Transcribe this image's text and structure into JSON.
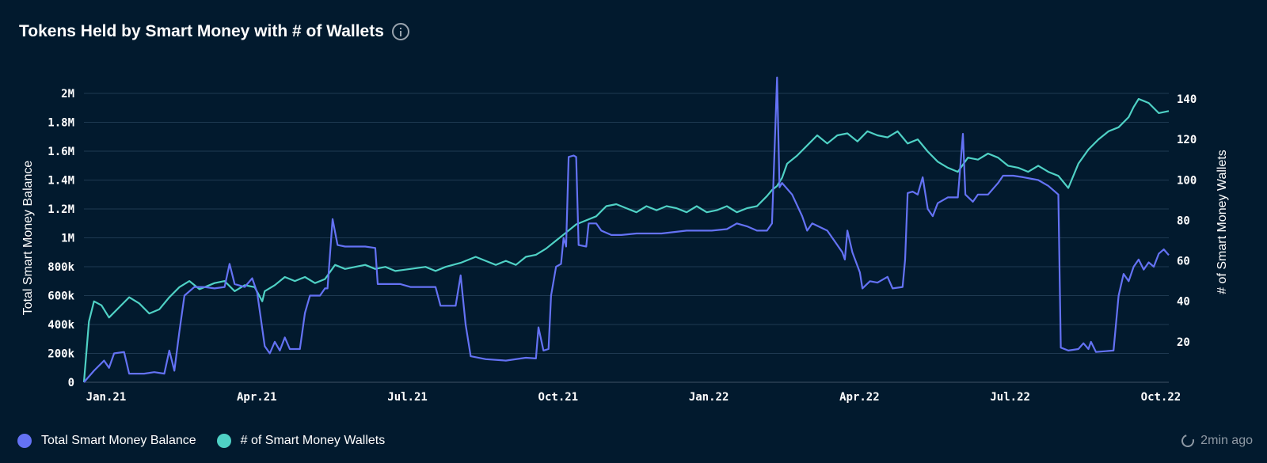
{
  "header": {
    "title": "Tokens Held by Smart Money with # of Wallets"
  },
  "legend": [
    {
      "label": "Total Smart Money Balance",
      "color": "#6472f4"
    },
    {
      "label": "# of Smart Money Wallets",
      "color": "#4fd1c5"
    }
  ],
  "footer": {
    "timestamp": "2min ago"
  },
  "chart_data": {
    "type": "line",
    "title": "Tokens Held by Smart Money with # of Wallets",
    "x_ticks": [
      "Jan.21",
      "Apr.21",
      "Jul.21",
      "Oct.21",
      "Jan.22",
      "Apr.22",
      "Jul.22",
      "Oct.22"
    ],
    "x_range": [
      0,
      21.6
    ],
    "y_left": {
      "label": "Total Smart Money Balance",
      "range": [
        0,
        2000000
      ],
      "ticks": [
        0,
        200000,
        400000,
        600000,
        800000,
        1000000,
        1200000,
        1400000,
        1600000,
        1800000,
        2000000
      ],
      "tick_labels": [
        "0",
        "200k",
        "400k",
        "600k",
        "800k",
        "1M",
        "1.2M",
        "1.4M",
        "1.6M",
        "1.8M",
        "2M"
      ]
    },
    "y_right": {
      "label": "# of Smart Money Wallets",
      "range": [
        0,
        140
      ],
      "ticks": [
        20,
        40,
        60,
        80,
        100,
        120,
        140
      ],
      "tick_labels": [
        "20",
        "40",
        "60",
        "80",
        "100",
        "120",
        "140"
      ]
    },
    "grid": true,
    "legend_position": "bottom-left",
    "series": [
      {
        "name": "Total Smart Money Balance",
        "axis": "left",
        "color": "#6472f4",
        "points": [
          [
            0.0,
            0
          ],
          [
            0.2,
            80000
          ],
          [
            0.4,
            150000
          ],
          [
            0.5,
            100000
          ],
          [
            0.6,
            200000
          ],
          [
            0.8,
            210000
          ],
          [
            0.9,
            60000
          ],
          [
            1.2,
            60000
          ],
          [
            1.4,
            70000
          ],
          [
            1.6,
            60000
          ],
          [
            1.7,
            220000
          ],
          [
            1.8,
            80000
          ],
          [
            1.9,
            350000
          ],
          [
            2.0,
            600000
          ],
          [
            2.2,
            660000
          ],
          [
            2.4,
            660000
          ],
          [
            2.6,
            650000
          ],
          [
            2.8,
            660000
          ],
          [
            2.9,
            820000
          ],
          [
            3.0,
            680000
          ],
          [
            3.2,
            660000
          ],
          [
            3.35,
            720000
          ],
          [
            3.45,
            620000
          ],
          [
            3.6,
            250000
          ],
          [
            3.7,
            200000
          ],
          [
            3.8,
            280000
          ],
          [
            3.9,
            220000
          ],
          [
            4.0,
            310000
          ],
          [
            4.1,
            230000
          ],
          [
            4.3,
            230000
          ],
          [
            4.4,
            480000
          ],
          [
            4.5,
            600000
          ],
          [
            4.7,
            600000
          ],
          [
            4.8,
            650000
          ],
          [
            4.85,
            650000
          ],
          [
            4.95,
            1130000
          ],
          [
            5.05,
            950000
          ],
          [
            5.2,
            940000
          ],
          [
            5.6,
            940000
          ],
          [
            5.8,
            930000
          ],
          [
            5.85,
            680000
          ],
          [
            6.3,
            680000
          ],
          [
            6.5,
            660000
          ],
          [
            7.0,
            660000
          ],
          [
            7.1,
            530000
          ],
          [
            7.4,
            530000
          ],
          [
            7.5,
            740000
          ],
          [
            7.6,
            400000
          ],
          [
            7.7,
            180000
          ],
          [
            8.0,
            160000
          ],
          [
            8.4,
            150000
          ],
          [
            8.8,
            170000
          ],
          [
            9.0,
            165000
          ],
          [
            9.05,
            380000
          ],
          [
            9.15,
            220000
          ],
          [
            9.25,
            230000
          ],
          [
            9.3,
            600000
          ],
          [
            9.4,
            800000
          ],
          [
            9.5,
            820000
          ],
          [
            9.55,
            1000000
          ],
          [
            9.6,
            940000
          ],
          [
            9.65,
            1560000
          ],
          [
            9.75,
            1570000
          ],
          [
            9.8,
            1560000
          ],
          [
            9.85,
            950000
          ],
          [
            10.0,
            940000
          ],
          [
            10.05,
            1100000
          ],
          [
            10.2,
            1100000
          ],
          [
            10.3,
            1050000
          ],
          [
            10.5,
            1020000
          ],
          [
            10.7,
            1020000
          ],
          [
            11.0,
            1030000
          ],
          [
            11.5,
            1030000
          ],
          [
            12.0,
            1050000
          ],
          [
            12.5,
            1050000
          ],
          [
            12.8,
            1060000
          ],
          [
            13.0,
            1100000
          ],
          [
            13.2,
            1080000
          ],
          [
            13.4,
            1050000
          ],
          [
            13.6,
            1050000
          ],
          [
            13.7,
            1100000
          ],
          [
            13.8,
            2110000
          ],
          [
            13.85,
            1350000
          ],
          [
            13.9,
            1380000
          ],
          [
            14.1,
            1300000
          ],
          [
            14.3,
            1150000
          ],
          [
            14.4,
            1050000
          ],
          [
            14.5,
            1100000
          ],
          [
            14.8,
            1050000
          ],
          [
            15.0,
            950000
          ],
          [
            15.1,
            900000
          ],
          [
            15.15,
            850000
          ],
          [
            15.2,
            1050000
          ],
          [
            15.3,
            900000
          ],
          [
            15.45,
            760000
          ],
          [
            15.5,
            650000
          ],
          [
            15.65,
            700000
          ],
          [
            15.8,
            690000
          ],
          [
            16.0,
            730000
          ],
          [
            16.1,
            650000
          ],
          [
            16.3,
            660000
          ],
          [
            16.35,
            850000
          ],
          [
            16.4,
            1310000
          ],
          [
            16.5,
            1320000
          ],
          [
            16.6,
            1300000
          ],
          [
            16.7,
            1420000
          ],
          [
            16.8,
            1200000
          ],
          [
            16.9,
            1150000
          ],
          [
            17.0,
            1240000
          ],
          [
            17.2,
            1280000
          ],
          [
            17.4,
            1280000
          ],
          [
            17.5,
            1720000
          ],
          [
            17.55,
            1300000
          ],
          [
            17.7,
            1250000
          ],
          [
            17.8,
            1300000
          ],
          [
            18.0,
            1300000
          ],
          [
            18.2,
            1380000
          ],
          [
            18.3,
            1430000
          ],
          [
            18.5,
            1430000
          ],
          [
            18.7,
            1420000
          ],
          [
            19.0,
            1400000
          ],
          [
            19.2,
            1360000
          ],
          [
            19.4,
            1300000
          ],
          [
            19.45,
            240000
          ],
          [
            19.6,
            220000
          ],
          [
            19.8,
            230000
          ],
          [
            19.9,
            270000
          ],
          [
            20.0,
            230000
          ],
          [
            20.05,
            280000
          ],
          [
            20.15,
            210000
          ],
          [
            20.5,
            220000
          ],
          [
            20.6,
            600000
          ],
          [
            20.7,
            750000
          ],
          [
            20.8,
            700000
          ],
          [
            20.9,
            800000
          ],
          [
            21.0,
            850000
          ],
          [
            21.1,
            780000
          ],
          [
            21.2,
            830000
          ],
          [
            21.3,
            800000
          ],
          [
            21.4,
            890000
          ],
          [
            21.5,
            920000
          ],
          [
            21.6,
            880000
          ]
        ]
      },
      {
        "name": "# of Smart Money Wallets",
        "axis": "right",
        "color": "#4fd1c5",
        "points": [
          [
            0.0,
            0
          ],
          [
            0.1,
            30
          ],
          [
            0.2,
            40
          ],
          [
            0.35,
            38
          ],
          [
            0.5,
            32
          ],
          [
            0.7,
            37
          ],
          [
            0.9,
            42
          ],
          [
            1.1,
            39
          ],
          [
            1.3,
            34
          ],
          [
            1.5,
            36
          ],
          [
            1.7,
            42
          ],
          [
            1.9,
            47
          ],
          [
            2.1,
            50
          ],
          [
            2.3,
            46
          ],
          [
            2.6,
            49
          ],
          [
            2.8,
            50
          ],
          [
            3.0,
            45
          ],
          [
            3.2,
            48
          ],
          [
            3.4,
            47
          ],
          [
            3.55,
            40
          ],
          [
            3.6,
            45
          ],
          [
            3.8,
            48
          ],
          [
            4.0,
            52
          ],
          [
            4.2,
            50
          ],
          [
            4.4,
            52
          ],
          [
            4.6,
            49
          ],
          [
            4.8,
            51
          ],
          [
            5.0,
            58
          ],
          [
            5.2,
            56
          ],
          [
            5.4,
            57
          ],
          [
            5.6,
            58
          ],
          [
            5.8,
            56
          ],
          [
            6.0,
            57
          ],
          [
            6.2,
            55
          ],
          [
            6.5,
            56
          ],
          [
            6.8,
            57
          ],
          [
            7.0,
            55
          ],
          [
            7.2,
            57
          ],
          [
            7.5,
            59
          ],
          [
            7.8,
            62
          ],
          [
            8.0,
            60
          ],
          [
            8.2,
            58
          ],
          [
            8.4,
            60
          ],
          [
            8.6,
            58
          ],
          [
            8.8,
            62
          ],
          [
            9.0,
            63
          ],
          [
            9.2,
            66
          ],
          [
            9.4,
            70
          ],
          [
            9.6,
            74
          ],
          [
            9.8,
            78
          ],
          [
            10.0,
            80
          ],
          [
            10.2,
            82
          ],
          [
            10.4,
            87
          ],
          [
            10.6,
            88
          ],
          [
            10.8,
            86
          ],
          [
            11.0,
            84
          ],
          [
            11.2,
            87
          ],
          [
            11.4,
            85
          ],
          [
            11.6,
            87
          ],
          [
            11.8,
            86
          ],
          [
            12.0,
            84
          ],
          [
            12.2,
            87
          ],
          [
            12.4,
            84
          ],
          [
            12.6,
            85
          ],
          [
            12.8,
            87
          ],
          [
            13.0,
            84
          ],
          [
            13.2,
            86
          ],
          [
            13.4,
            87
          ],
          [
            13.6,
            92
          ],
          [
            13.7,
            95
          ],
          [
            13.8,
            97
          ],
          [
            13.9,
            101
          ],
          [
            14.0,
            108
          ],
          [
            14.2,
            112
          ],
          [
            14.4,
            117
          ],
          [
            14.6,
            122
          ],
          [
            14.8,
            118
          ],
          [
            15.0,
            122
          ],
          [
            15.2,
            123
          ],
          [
            15.4,
            119
          ],
          [
            15.6,
            124
          ],
          [
            15.8,
            122
          ],
          [
            16.0,
            121
          ],
          [
            16.2,
            124
          ],
          [
            16.4,
            118
          ],
          [
            16.6,
            120
          ],
          [
            16.8,
            114
          ],
          [
            17.0,
            109
          ],
          [
            17.2,
            106
          ],
          [
            17.4,
            104
          ],
          [
            17.6,
            111
          ],
          [
            17.8,
            110
          ],
          [
            18.0,
            113
          ],
          [
            18.2,
            111
          ],
          [
            18.4,
            107
          ],
          [
            18.6,
            106
          ],
          [
            18.8,
            104
          ],
          [
            19.0,
            107
          ],
          [
            19.2,
            104
          ],
          [
            19.4,
            102
          ],
          [
            19.6,
            96
          ],
          [
            19.8,
            108
          ],
          [
            20.0,
            115
          ],
          [
            20.2,
            120
          ],
          [
            20.4,
            124
          ],
          [
            20.6,
            126
          ],
          [
            20.8,
            131
          ],
          [
            20.9,
            136
          ],
          [
            21.0,
            140
          ],
          [
            21.2,
            138
          ],
          [
            21.4,
            133
          ],
          [
            21.6,
            134
          ]
        ]
      }
    ]
  }
}
